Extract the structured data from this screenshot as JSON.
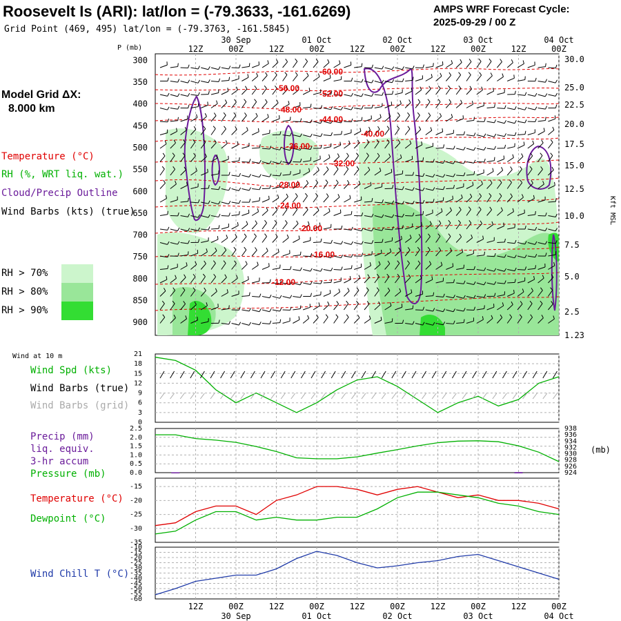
{
  "header": {
    "title": "Roosevelt Is (ARI):  lat/lon = (-79.3633, -161.6269)",
    "subtitle": "Grid Point (469, 495) lat/lon = (-79.3763, -161.5845)",
    "product_line1": "AMPS WRF Forecast Cycle:",
    "product_line2": "2025-09-29 / 00  Z"
  },
  "left_panel": {
    "grid_label": "Model Grid ΔX:",
    "grid_value": "8.000 km",
    "legend": [
      {
        "text": "Temperature (°C)",
        "color": "#e00000"
      },
      {
        "text": "RH (%, WRT liq. wat.)",
        "color": "#00b000"
      },
      {
        "text": "Cloud/Precip Outline",
        "color": "#6a1b9a"
      },
      {
        "text": "Wind Barbs (kts) (true)",
        "color": "#000000"
      }
    ],
    "rh_key": [
      {
        "text": "RH > 70%",
        "color": "#ccf5cc"
      },
      {
        "text": "RH > 80%",
        "color": "#99e699"
      },
      {
        "text": "RH > 90%",
        "color": "#33dd33"
      }
    ]
  },
  "time_axis": {
    "hours": [
      "12Z",
      "00Z",
      "12Z",
      "00Z",
      "12Z",
      "00Z",
      "12Z",
      "00Z",
      "12Z",
      "00Z"
    ],
    "dates": [
      "30 Sep",
      "01 Oct",
      "02 Oct",
      "03 Oct",
      "04 Oct"
    ]
  },
  "colors": {
    "temperature": "#e00000",
    "rh": "#00b000",
    "cloud_outline": "#6a1b9a",
    "wind": "#000000",
    "wind_grid": "#aaaaaa",
    "wind_chill": "#1f3aa8",
    "gridline": "#b0b0b0"
  },
  "chart_data": [
    {
      "type": "heatmap",
      "name": "vertical cross-section",
      "ylabel": "P (mb)",
      "y2label": "Kft MSL",
      "pressure_ticks": [
        300,
        350,
        400,
        450,
        500,
        550,
        600,
        650,
        700,
        750,
        800,
        850,
        900
      ],
      "height_ticks": [
        "30.0",
        "25.0",
        "22.5",
        "20.0",
        "17.5",
        "15.0",
        "12.5",
        "10.0",
        "7.5",
        "5.0",
        "2.5",
        "1.23"
      ],
      "isotherm_labels": [
        "-60.00",
        "-56.00",
        "-52.00",
        "-48.00",
        "-44.00",
        "-40.00",
        "-36.00",
        "-32.00",
        "-28.00",
        "-24.00",
        "-20.00",
        "-16.00",
        "-12.00"
      ],
      "xlim_hours": [
        0,
        120
      ]
    },
    {
      "type": "line",
      "name": "wind",
      "caption": "Wind at 10 m",
      "labels": [
        "Wind Spd (kts)",
        "Wind Barbs (true)",
        "Wind Barbs (grid)"
      ],
      "y_ticks": [
        0,
        3,
        6,
        9,
        12,
        15,
        18,
        21
      ],
      "ylim": [
        0,
        21
      ],
      "x": [
        0,
        6,
        12,
        18,
        24,
        30,
        36,
        42,
        48,
        54,
        60,
        66,
        72,
        78,
        84,
        90,
        96,
        102,
        108,
        114,
        120
      ],
      "values": [
        20,
        19,
        16,
        10,
        6,
        9,
        6,
        3,
        6,
        10,
        13,
        14,
        11,
        7,
        3,
        6,
        8,
        5,
        7,
        12,
        14
      ]
    },
    {
      "type": "line",
      "name": "precip-pressure",
      "labels": [
        "Precip (mm)",
        "liq. equiv.",
        "3-hr accum",
        "Pressure (mb)"
      ],
      "y_ticks": [
        "0.0",
        "0.5",
        "1.0",
        "1.5",
        "2.0",
        "2.5"
      ],
      "y2_ticks": [
        924,
        926,
        928,
        930,
        932,
        934,
        936,
        938
      ],
      "y2label": "(mb)",
      "ylim": [
        0,
        2.5
      ],
      "y2lim": [
        924,
        938
      ],
      "x": [
        0,
        6,
        12,
        18,
        24,
        30,
        36,
        42,
        48,
        54,
        60,
        66,
        72,
        78,
        84,
        90,
        96,
        102,
        108,
        114,
        120
      ],
      "pressure": [
        936.0,
        936.0,
        934.8,
        934.3,
        933.6,
        932.3,
        930.7,
        928.7,
        928.4,
        928.4,
        929.0,
        930.2,
        931.3,
        932.5,
        933.5,
        934.0,
        934.1,
        933.8,
        932.5,
        930.5,
        927.5
      ],
      "precip": [
        0,
        0.02,
        0,
        0,
        0,
        0,
        0,
        0,
        0,
        0,
        0,
        0,
        0,
        0,
        0,
        0,
        0,
        0,
        0.03,
        0,
        0
      ]
    },
    {
      "type": "line",
      "name": "temperature-dewpoint",
      "labels": [
        "Temperature (°C)",
        "Dewpoint (°C)"
      ],
      "y_ticks": [
        -35,
        -30,
        -25,
        -20,
        -15
      ],
      "ylim": [
        -35,
        -12
      ],
      "x": [
        0,
        6,
        12,
        18,
        24,
        30,
        36,
        42,
        48,
        54,
        60,
        66,
        72,
        78,
        84,
        90,
        96,
        102,
        108,
        114,
        120
      ],
      "series": [
        {
          "name": "Temperature (°C)",
          "values": [
            -29,
            -28,
            -24,
            -22,
            -22,
            -25,
            -20,
            -18,
            -15,
            -15,
            -16,
            -18,
            -16,
            -15,
            -17,
            -19,
            -18,
            -20,
            -20,
            -21,
            -23
          ]
        },
        {
          "name": "Dewpoint (°C)",
          "values": [
            -32,
            -31,
            -27,
            -24,
            -24,
            -27,
            -26,
            -27,
            -27,
            -26,
            -26,
            -23,
            -19,
            -17,
            -17,
            -18,
            -19,
            -21,
            -22,
            -24,
            -25
          ]
        }
      ]
    },
    {
      "type": "line",
      "name": "wind-chill",
      "labels": [
        "Wind Chill T (°C)"
      ],
      "y_ticks": [
        -10,
        -15,
        -20,
        -25,
        -30,
        -35,
        -40,
        -45,
        -50,
        -55,
        -60
      ],
      "ylim": [
        -60,
        -10
      ],
      "x": [
        0,
        6,
        12,
        18,
        24,
        30,
        36,
        42,
        48,
        54,
        60,
        66,
        72,
        78,
        84,
        90,
        96,
        102,
        108,
        114,
        120
      ],
      "values": [
        -56,
        -50,
        -43,
        -40,
        -37,
        -37,
        -31,
        -21,
        -14,
        -18,
        -25,
        -30,
        -28,
        -25,
        -23,
        -19,
        -17,
        -23,
        -29,
        -35,
        -41
      ]
    }
  ]
}
